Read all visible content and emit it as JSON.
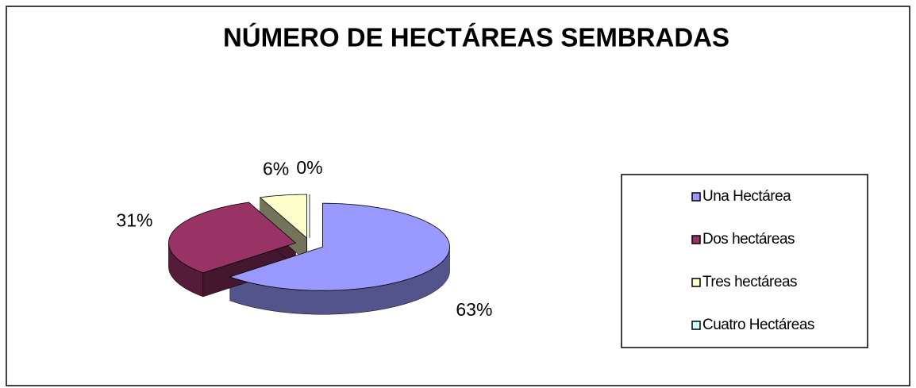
{
  "chart_data": {
    "type": "pie",
    "title": "NÚMERO DE HECTÁREAS SEMBRADAS",
    "categories": [
      "Una Hectárea",
      "Dos hectáreas",
      "Tres hectáreas",
      "Cuatro Hectáreas"
    ],
    "values": [
      63,
      31,
      6,
      0
    ],
    "value_labels": [
      "63%",
      "31%",
      "6%",
      "0%"
    ],
    "colors": [
      "#9999ff",
      "#993366",
      "#ffffcc",
      "#ccffff"
    ],
    "legend": "right"
  }
}
